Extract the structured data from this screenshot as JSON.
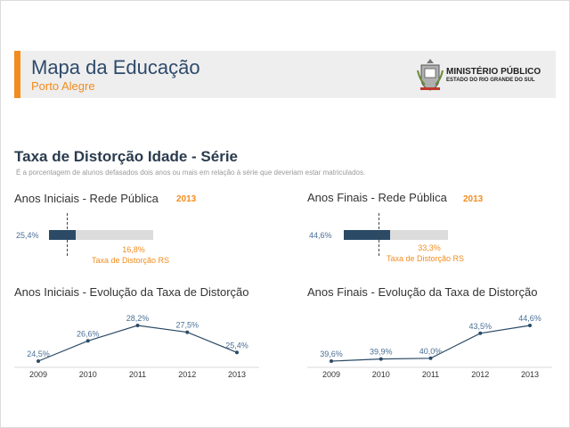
{
  "header": {
    "title": "Mapa da Educação",
    "subtitle": "Porto Alegre",
    "logo_line1": "MINISTÉRIO PÚBLICO",
    "logo_line2": "ESTADO DO RIO GRANDE DO SUL"
  },
  "colors": {
    "accent": "#f28c1e",
    "dark_blue": "#2b4a66",
    "line_blue": "#4a6f96"
  },
  "section": {
    "title": "Taxa de Distorção Idade - Série",
    "description": "É a porcentagem de alunos defasados dois anos ou mais em relação à série que deveriam estar matriculados."
  },
  "left_bar": {
    "title": "Anos Iniciais - Rede Pública",
    "year": "2013",
    "value_label": "25,4%",
    "value": 25.4,
    "ref_value_label": "16,8%",
    "ref_value": 16.8,
    "ref_label": "Taxa de Distorção RS"
  },
  "right_bar": {
    "title": "Anos Finais - Rede Pública",
    "year": "2013",
    "value_label": "44,6%",
    "value": 44.6,
    "ref_value_label": "33,3%",
    "ref_value": 33.3,
    "ref_label": "Taxa de Distorção RS"
  },
  "left_line_title": "Anos Iniciais - Evolução da Taxa de Distorção",
  "right_line_title": "Anos Finais - Evolução da Taxa de Distorção",
  "chart_data": [
    {
      "type": "line",
      "x": [
        "2009",
        "2010",
        "2011",
        "2012",
        "2013"
      ],
      "values": [
        24.5,
        26.6,
        28.2,
        27.5,
        25.4
      ],
      "data_labels": [
        "24,5%",
        "26,6%",
        "28,2%",
        "27,5%",
        "25,4%"
      ]
    },
    {
      "type": "line",
      "x": [
        "2009",
        "2010",
        "2011",
        "2012",
        "2013"
      ],
      "values": [
        39.6,
        39.9,
        40.0,
        43.5,
        44.6
      ],
      "data_labels": [
        "39,6%",
        "39,9%",
        "40,0%",
        "43,5%",
        "44,6%"
      ]
    }
  ]
}
